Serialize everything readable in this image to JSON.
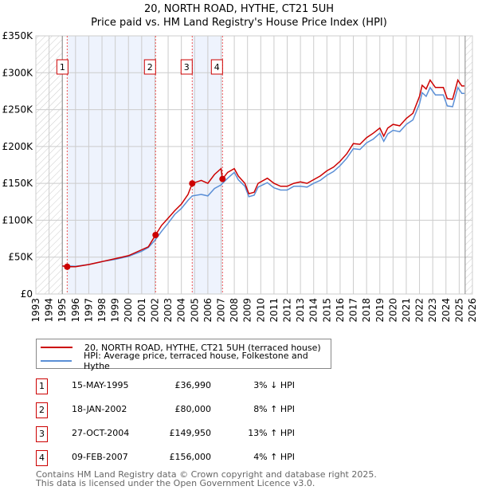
{
  "title": "20, NORTH ROAD, HYTHE, CT21 5UH",
  "subtitle": "Price paid vs. HM Land Registry's House Price Index (HPI)",
  "chart_data": {
    "type": "line",
    "title": "20, NORTH ROAD, HYTHE, CT21 5UH",
    "subtitle": "Price paid vs. HM Land Registry's House Price Index (HPI)",
    "xlim": [
      1993,
      2026
    ],
    "ylim": [
      0,
      350000
    ],
    "x_ticks": [
      "1993",
      "1994",
      "1995",
      "1996",
      "1997",
      "1998",
      "1999",
      "2000",
      "2001",
      "2002",
      "2003",
      "2004",
      "2005",
      "2006",
      "2007",
      "2008",
      "2009",
      "2010",
      "2011",
      "2012",
      "2013",
      "2014",
      "2015",
      "2016",
      "2017",
      "2018",
      "2019",
      "2020",
      "2021",
      "2022",
      "2023",
      "2024",
      "2025",
      "2026"
    ],
    "y_ticks": [
      {
        "v": 0,
        "label": "£0"
      },
      {
        "v": 50000,
        "label": "£50K"
      },
      {
        "v": 100000,
        "label": "£100K"
      },
      {
        "v": 150000,
        "label": "£150K"
      },
      {
        "v": 200000,
        "label": "£200K"
      },
      {
        "v": 250000,
        "label": "£250K"
      },
      {
        "v": 300000,
        "label": "£300K"
      },
      {
        "v": 350000,
        "label": "£350K"
      }
    ],
    "grid": true,
    "hatched_ranges": [
      [
        1993,
        1995
      ],
      [
        2025.45,
        2026
      ]
    ],
    "shaded_ranges": [
      [
        1995.37,
        2002.05
      ],
      [
        2004.82,
        2007.11
      ]
    ],
    "series": [
      {
        "name": "20, NORTH ROAD, HYTHE, CT21 5UH (terraced house)",
        "color": "#cc0000",
        "x": [
          1995,
          1995.37,
          1996,
          1997,
          1998,
          1999,
          2000,
          2001,
          2001.5,
          2002.05,
          2002.5,
          2003,
          2003.5,
          2004,
          2004.5,
          2004.82,
          2005.5,
          2006,
          2006.5,
          2007.0,
          2007.11,
          2007.5,
          2008,
          2008.3,
          2008.8,
          2009.1,
          2009.5,
          2009.8,
          2010.5,
          2011,
          2011.5,
          2012,
          2012.5,
          2013,
          2013.5,
          2014,
          2014.5,
          2015,
          2015.5,
          2016,
          2016.5,
          2017,
          2017.5,
          2018,
          2018.5,
          2019,
          2019.3,
          2019.6,
          2020,
          2020.5,
          2021,
          2021.5,
          2022,
          2022.2,
          2022.5,
          2022.8,
          2023.2,
          2023.8,
          2024.1,
          2024.5,
          2024.9,
          2025.2,
          2025.4
        ],
        "y": [
          38000,
          37000,
          37000,
          40000,
          44000,
          48000,
          52000,
          60000,
          64000,
          80000,
          93000,
          103000,
          113000,
          122000,
          135000,
          149950,
          154000,
          150000,
          162000,
          170000,
          156000,
          165000,
          170000,
          160000,
          150000,
          136000,
          138000,
          150000,
          157000,
          150000,
          146000,
          146000,
          150000,
          152000,
          150000,
          155000,
          160000,
          167000,
          172000,
          180000,
          190000,
          204000,
          203000,
          212000,
          218000,
          225000,
          214000,
          225000,
          230000,
          228000,
          238000,
          245000,
          268000,
          283000,
          278000,
          290000,
          280000,
          280000,
          265000,
          264000,
          290000,
          282000,
          282000
        ]
      },
      {
        "name": "HPI: Average price, terraced house, Folkestone and Hythe",
        "color": "#5b8fd6",
        "x": [
          1995,
          1995.37,
          1996,
          1997,
          1998,
          1999,
          2000,
          2001,
          2001.5,
          2002.05,
          2002.5,
          2003,
          2003.5,
          2004,
          2004.5,
          2004.82,
          2005.5,
          2006,
          2006.5,
          2007.0,
          2007.11,
          2007.5,
          2008,
          2008.3,
          2008.8,
          2009.1,
          2009.5,
          2009.8,
          2010.5,
          2011,
          2011.5,
          2012,
          2012.5,
          2013,
          2013.5,
          2014,
          2014.5,
          2015,
          2015.5,
          2016,
          2016.5,
          2017,
          2017.5,
          2018,
          2018.5,
          2019,
          2019.3,
          2019.6,
          2020,
          2020.5,
          2021,
          2021.5,
          2022,
          2022.2,
          2022.5,
          2022.8,
          2023.2,
          2023.8,
          2024.1,
          2024.5,
          2024.9,
          2025.2,
          2025.4
        ],
        "y": [
          38000,
          38000,
          37500,
          40000,
          44000,
          47000,
          51000,
          58000,
          63000,
          74000,
          85000,
          96000,
          108000,
          116000,
          127000,
          133000,
          135000,
          133000,
          143000,
          148000,
          150000,
          157000,
          165000,
          155000,
          146000,
          132000,
          134000,
          145000,
          151000,
          144000,
          141000,
          141000,
          146000,
          146000,
          145000,
          150000,
          154000,
          161000,
          166000,
          174000,
          184000,
          197000,
          196000,
          205000,
          210000,
          218000,
          207000,
          217000,
          222000,
          220000,
          230000,
          236000,
          258000,
          273000,
          268000,
          280000,
          270000,
          270000,
          255000,
          254000,
          280000,
          272000,
          272000
        ]
      }
    ],
    "sales": [
      {
        "n": "1",
        "x": 1995.37,
        "y": 36990
      },
      {
        "n": "2",
        "x": 2002.05,
        "y": 80000
      },
      {
        "n": "3",
        "x": 2004.82,
        "y": 149950
      },
      {
        "n": "4",
        "x": 2007.11,
        "y": 156000
      }
    ]
  },
  "legend": [
    {
      "label": "20, NORTH ROAD, HYTHE, CT21 5UH (terraced house)",
      "color": "#cc0000"
    },
    {
      "label": "HPI: Average price, terraced house, Folkestone and Hythe",
      "color": "#5b8fd6"
    }
  ],
  "transactions": [
    {
      "n": "1",
      "date": "15-MAY-1995",
      "price": "£36,990",
      "hpi": "3% ↓ HPI"
    },
    {
      "n": "2",
      "date": "18-JAN-2002",
      "price": "£80,000",
      "hpi": "8% ↑ HPI"
    },
    {
      "n": "3",
      "date": "27-OCT-2004",
      "price": "£149,950",
      "hpi": "13% ↑ HPI"
    },
    {
      "n": "4",
      "date": "09-FEB-2007",
      "price": "£156,000",
      "hpi": "4% ↑ HPI"
    }
  ],
  "footer": {
    "line1": "Contains HM Land Registry data © Crown copyright and database right 2025.",
    "line2": "This data is licensed under the Open Government Licence v3.0."
  }
}
